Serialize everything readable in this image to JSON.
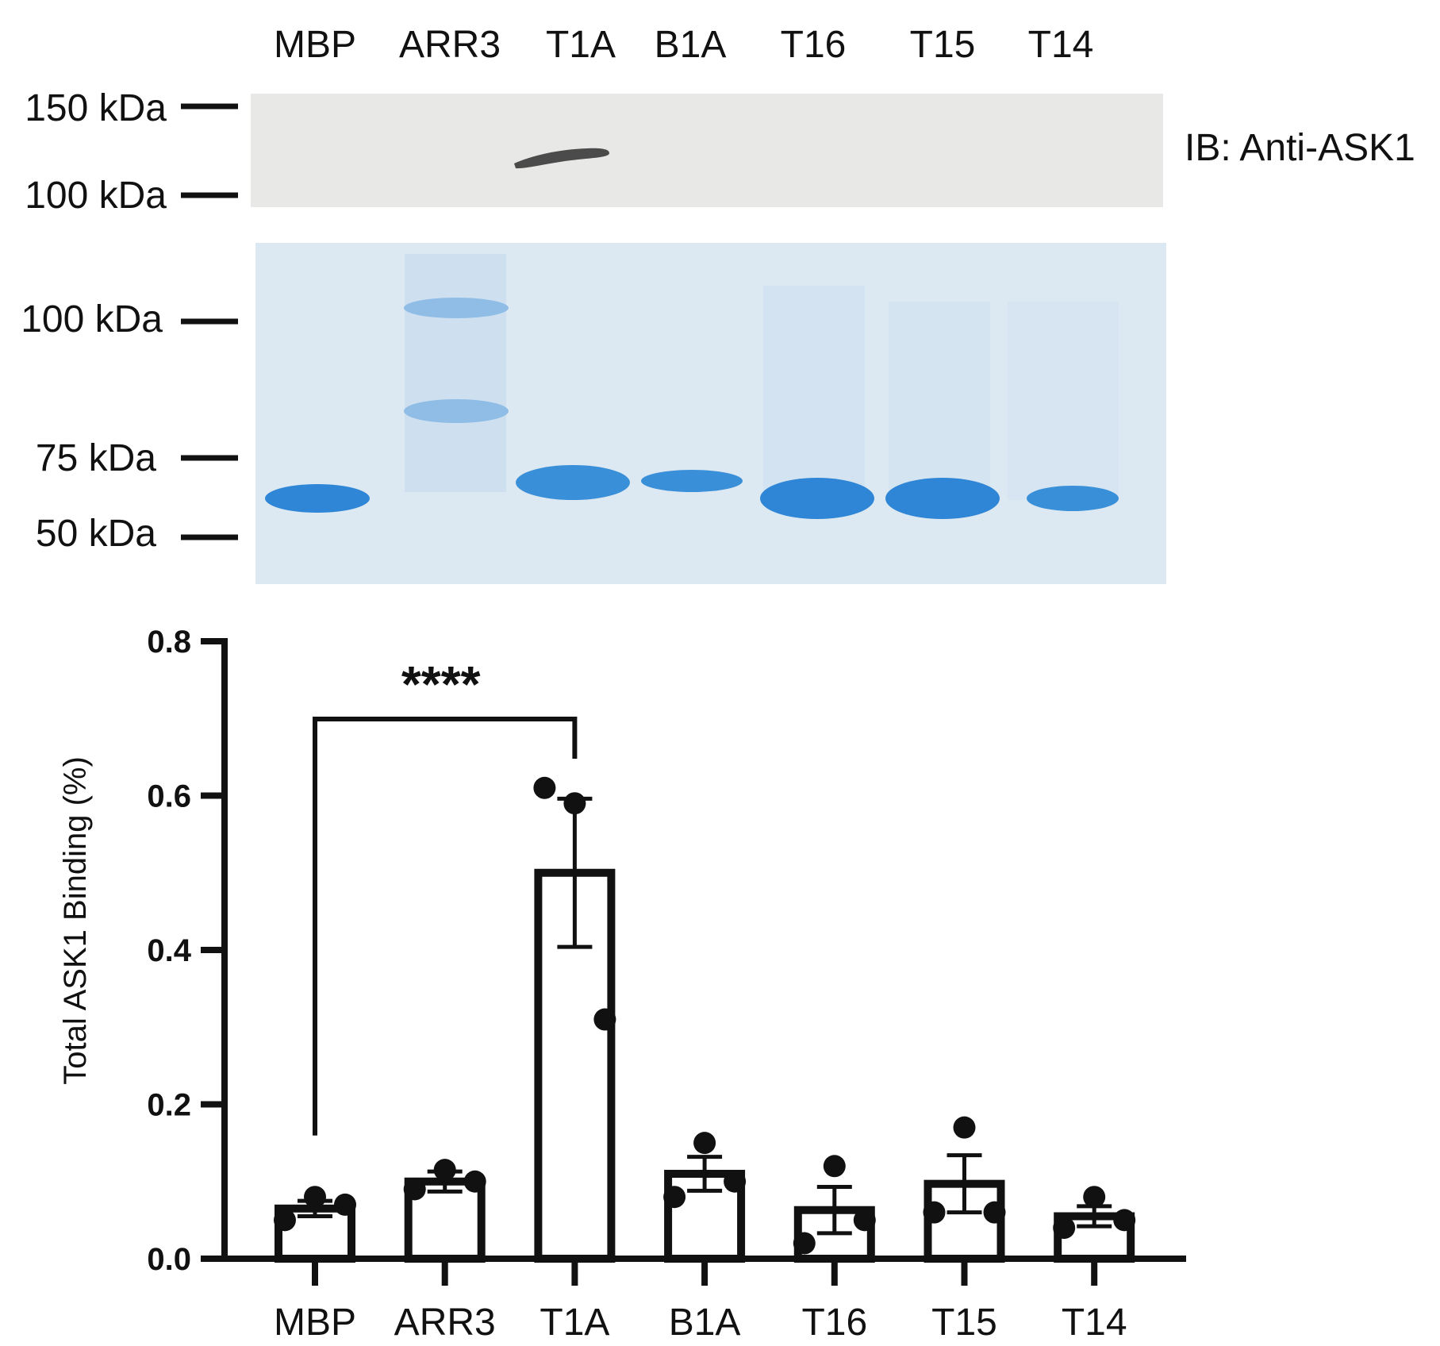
{
  "lanes": [
    "MBP",
    "ARR3",
    "T1A",
    "B1A",
    "T16",
    "T15",
    "T14"
  ],
  "blot": {
    "ib_label": "IB: Anti-ASK1",
    "markers": [
      "150 kDa",
      "100 kDa"
    ],
    "band_lane": "T1A",
    "background_color": "#e8e8e6",
    "band_color": "#3a3a3a"
  },
  "gel": {
    "markers": [
      "100 kDa",
      "75 kDa",
      "50 kDa"
    ],
    "background_color": "#dce8f2",
    "band_color": "#2f86d6"
  },
  "chart_data": {
    "type": "bar",
    "categories": [
      "MBP",
      "ARR3",
      "T1A",
      "B1A",
      "T16",
      "T15",
      "T14"
    ],
    "values": [
      0.065,
      0.1,
      0.5,
      0.11,
      0.063,
      0.097,
      0.055
    ],
    "error": [
      0.01,
      0.013,
      0.096,
      0.022,
      0.03,
      0.037,
      0.013
    ],
    "points": [
      [
        0.05,
        0.08,
        0.07
      ],
      [
        0.09,
        0.115,
        0.1
      ],
      [
        0.61,
        0.59,
        0.31
      ],
      [
        0.08,
        0.15,
        0.1
      ],
      [
        0.02,
        0.12,
        0.05
      ],
      [
        0.06,
        0.17,
        0.06
      ],
      [
        0.04,
        0.08,
        0.05
      ]
    ],
    "ylabel": "Total ASK1 Binding (%)",
    "xlabel": "",
    "ylim": [
      0,
      0.8
    ],
    "yticks": [
      0.0,
      0.2,
      0.4,
      0.6,
      0.8
    ],
    "ytick_labels": [
      "0.0",
      "0.2",
      "0.4",
      "0.6",
      "0.8"
    ],
    "grid": false,
    "significance": {
      "from": "MBP",
      "to": "T1A",
      "label": "****"
    }
  }
}
